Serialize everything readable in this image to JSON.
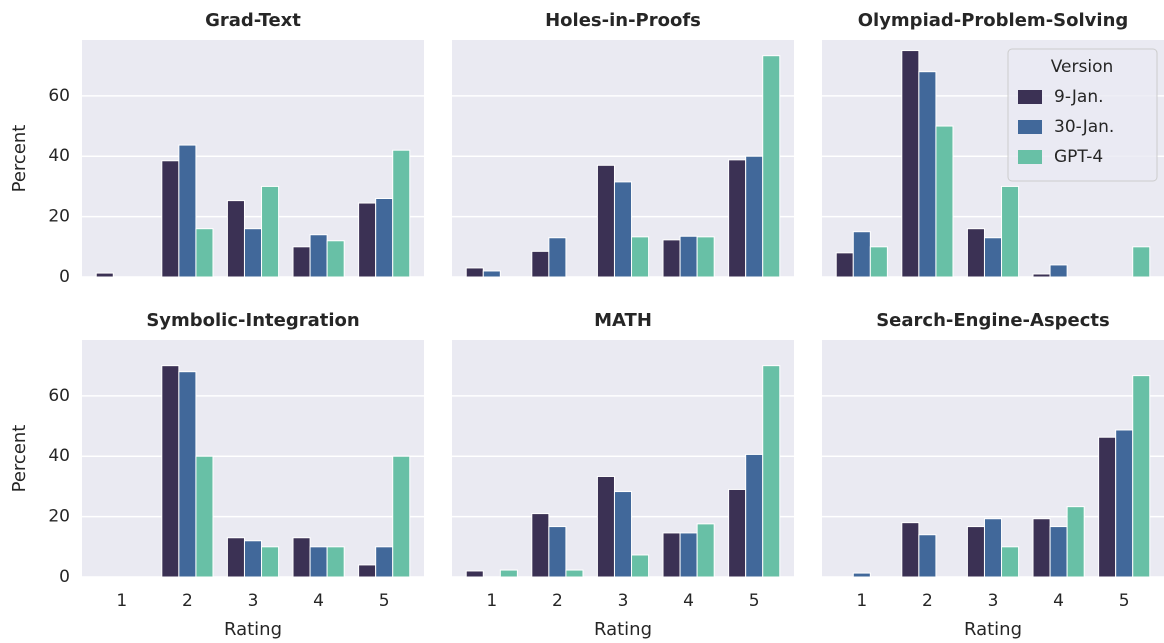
{
  "chart_data": [
    {
      "type": "bar",
      "title": "Grad-Text",
      "ylabel": "Percent",
      "categories": [
        "1",
        "2",
        "3",
        "4",
        "5"
      ],
      "series": [
        {
          "color": "#3b3154",
          "values": [
            1.3,
            38.5,
            25.3,
            10,
            24.5
          ]
        },
        {
          "color": "#41689a",
          "values": [
            0,
            43.7,
            16,
            14,
            26
          ]
        },
        {
          "color": "#68c0a6",
          "values": [
            0,
            16,
            30,
            12,
            42
          ]
        }
      ],
      "ylim": [
        0,
        78.5
      ],
      "yticks": [
        0,
        20,
        40,
        60
      ],
      "grid": true
    },
    {
      "type": "bar",
      "title": "Holes-in-Proofs",
      "categories": [
        "1",
        "2",
        "3",
        "4",
        "5"
      ],
      "series": [
        {
          "color": "#3b3154",
          "values": [
            3,
            8.5,
            37,
            12.3,
            38.8
          ]
        },
        {
          "color": "#41689a",
          "values": [
            2,
            13,
            31.5,
            13.5,
            40
          ]
        },
        {
          "color": "#68c0a6",
          "values": [
            0,
            0,
            13.3,
            13.3,
            73.3
          ]
        }
      ],
      "ylim": [
        0,
        78.5
      ],
      "yticks": [
        0,
        20,
        40,
        60
      ],
      "grid": true
    },
    {
      "type": "bar",
      "title": "Olympiad-Problem-Solving",
      "categories": [
        "1",
        "2",
        "3",
        "4",
        "5"
      ],
      "legend": "upper right",
      "legend_title": "Version",
      "series": [
        {
          "name": "9-Jan.",
          "color": "#3b3154",
          "values": [
            8,
            75,
            16,
            1,
            0
          ]
        },
        {
          "name": "30-Jan.",
          "color": "#41689a",
          "values": [
            15,
            68,
            13,
            4,
            0
          ]
        },
        {
          "name": "GPT-4",
          "color": "#68c0a6",
          "values": [
            10,
            50,
            30,
            0,
            10
          ]
        }
      ],
      "ylim": [
        0,
        78.5
      ],
      "yticks": [
        0,
        20,
        40,
        60
      ],
      "grid": true
    },
    {
      "type": "bar",
      "title": "Symbolic-Integration",
      "ylabel": "Percent",
      "xlabel": "Rating",
      "categories": [
        "1",
        "2",
        "3",
        "4",
        "5"
      ],
      "series": [
        {
          "color": "#3b3154",
          "values": [
            0,
            70,
            13,
            13,
            4
          ]
        },
        {
          "color": "#41689a",
          "values": [
            0,
            68,
            12,
            10,
            10
          ]
        },
        {
          "color": "#68c0a6",
          "values": [
            0,
            40,
            10,
            10,
            40
          ]
        }
      ],
      "ylim": [
        0,
        78.5
      ],
      "yticks": [
        0,
        20,
        40,
        60
      ],
      "grid": true
    },
    {
      "type": "bar",
      "title": "MATH",
      "xlabel": "Rating",
      "categories": [
        "1",
        "2",
        "3",
        "4",
        "5"
      ],
      "series": [
        {
          "color": "#3b3154",
          "values": [
            2,
            21,
            33.3,
            14.6,
            29
          ]
        },
        {
          "color": "#41689a",
          "values": [
            0,
            16.7,
            28.3,
            14.6,
            40.6
          ]
        },
        {
          "color": "#68c0a6",
          "values": [
            2.3,
            2.3,
            7.3,
            17.6,
            70
          ]
        }
      ],
      "ylim": [
        0,
        78.5
      ],
      "yticks": [
        0,
        20,
        40,
        60
      ],
      "grid": true
    },
    {
      "type": "bar",
      "title": "Search-Engine-Aspects",
      "xlabel": "Rating",
      "categories": [
        "1",
        "2",
        "3",
        "4",
        "5"
      ],
      "series": [
        {
          "color": "#3b3154",
          "values": [
            0,
            18,
            16.7,
            19.3,
            46.3
          ]
        },
        {
          "color": "#41689a",
          "values": [
            1.3,
            14,
            19.3,
            16.7,
            48.7
          ]
        },
        {
          "color": "#68c0a6",
          "values": [
            0,
            0,
            10,
            23.3,
            66.7
          ]
        }
      ],
      "ylim": [
        0,
        78.5
      ],
      "yticks": [
        0,
        20,
        40,
        60
      ],
      "grid": true
    }
  ]
}
